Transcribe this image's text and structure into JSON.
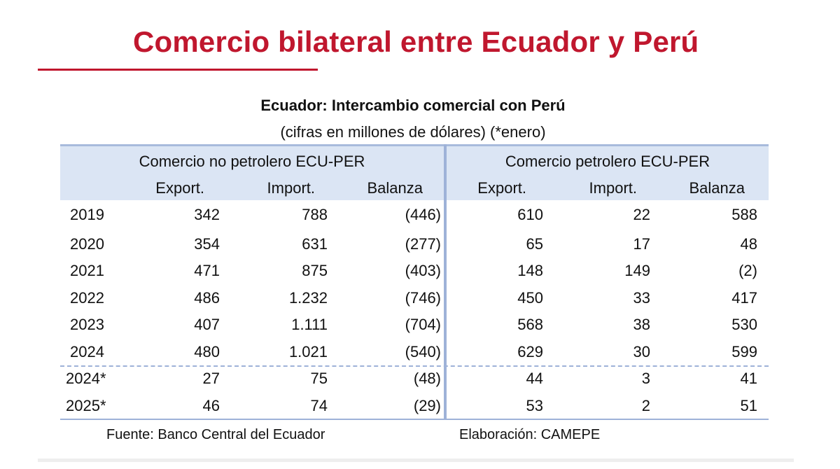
{
  "page": {
    "title": "Comercio bilateral entre Ecuador y Perú",
    "accent_color": "#c0172e",
    "header_fill_color": "#dbe5f4"
  },
  "table": {
    "title": "Ecuador: Intercambio comercial con Perú",
    "subtitle": "(cifras en millones de dólares) (*enero)",
    "groups": [
      "Comercio no petrolero ECU-PER",
      "Comercio petrolero ECU-PER"
    ],
    "columns": [
      "Export.",
      "Import.",
      "Balanza",
      "Export.",
      "Import.",
      "Balanza"
    ],
    "rows": [
      {
        "year": "2019",
        "values": [
          "342",
          "788",
          "(446)",
          "610",
          "22",
          "588"
        ]
      },
      {
        "year": "2020",
        "values": [
          "354",
          "631",
          "(277)",
          "65",
          "17",
          "48"
        ]
      },
      {
        "year": "2021",
        "values": [
          "471",
          "875",
          "(403)",
          "148",
          "149",
          "(2)"
        ]
      },
      {
        "year": "2022",
        "values": [
          "486",
          "1.232",
          "(746)",
          "450",
          "33",
          "417"
        ]
      },
      {
        "year": "2023",
        "values": [
          "407",
          "1.111",
          "(704)",
          "568",
          "38",
          "530"
        ]
      },
      {
        "year": "2024",
        "values": [
          "480",
          "1.021",
          "(540)",
          "629",
          "30",
          "599"
        ]
      },
      {
        "year": "2024*",
        "values": [
          "27",
          "75",
          "(48)",
          "44",
          "3",
          "41"
        ]
      },
      {
        "year": "2025*",
        "values": [
          "46",
          "74",
          "(29)",
          "53",
          "2",
          "51"
        ]
      }
    ]
  },
  "footer": {
    "source": "Fuente: Banco Central del Ecuador",
    "credit": "Elaboración: CAMEPE"
  }
}
